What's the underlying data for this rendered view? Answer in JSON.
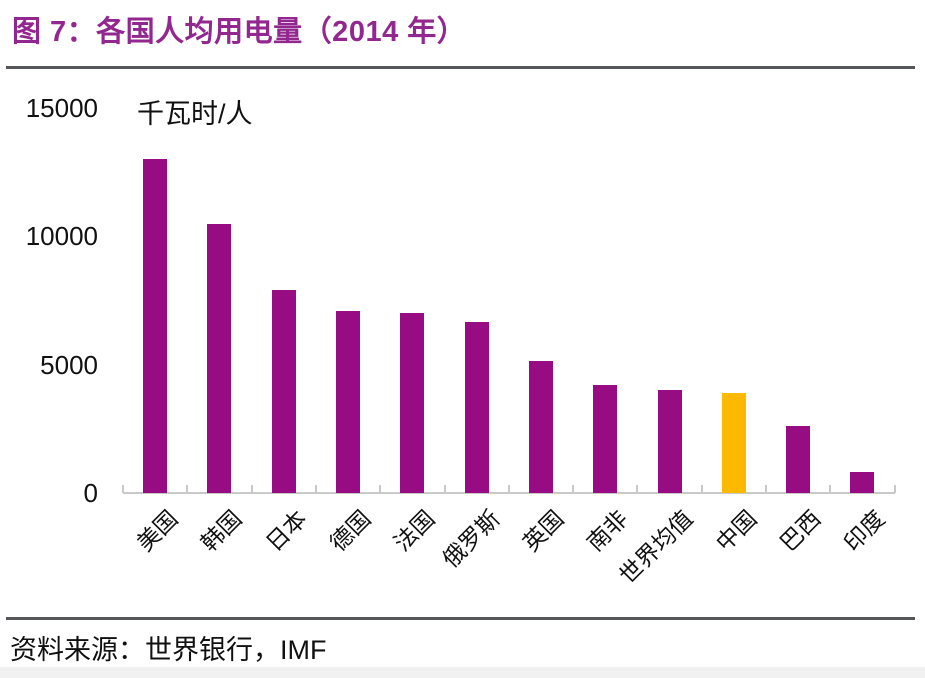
{
  "figure": {
    "title": "图 7：各国人均用电量（2014 年）",
    "source_note": "资料来源：世界银行，IMF"
  },
  "chart_data": {
    "type": "bar",
    "title": "图 7：各国人均用电量（2014 年）",
    "unit_label": "千瓦时/人",
    "categories": [
      "美国",
      "韩国",
      "日本",
      "德国",
      "法国",
      "俄罗斯",
      "英国",
      "南非",
      "世界均值",
      "中国",
      "巴西",
      "印度"
    ],
    "values": [
      13000,
      10500,
      7900,
      7100,
      7000,
      6650,
      5150,
      4200,
      4000,
      3900,
      2600,
      800
    ],
    "highlight_category": "中国",
    "highlight_index": 9,
    "yticks": [
      0,
      5000,
      10000,
      15000
    ],
    "ylim": [
      0,
      15000
    ],
    "grid": false,
    "legend": false,
    "colors": {
      "bar": "#970C83",
      "highlight": "#FBBA00",
      "title": "#92278F",
      "axis": "#C9C9C9",
      "rule": "#55565A",
      "text": "#111111"
    },
    "source": "资料来源：世界银行，IMF"
  }
}
